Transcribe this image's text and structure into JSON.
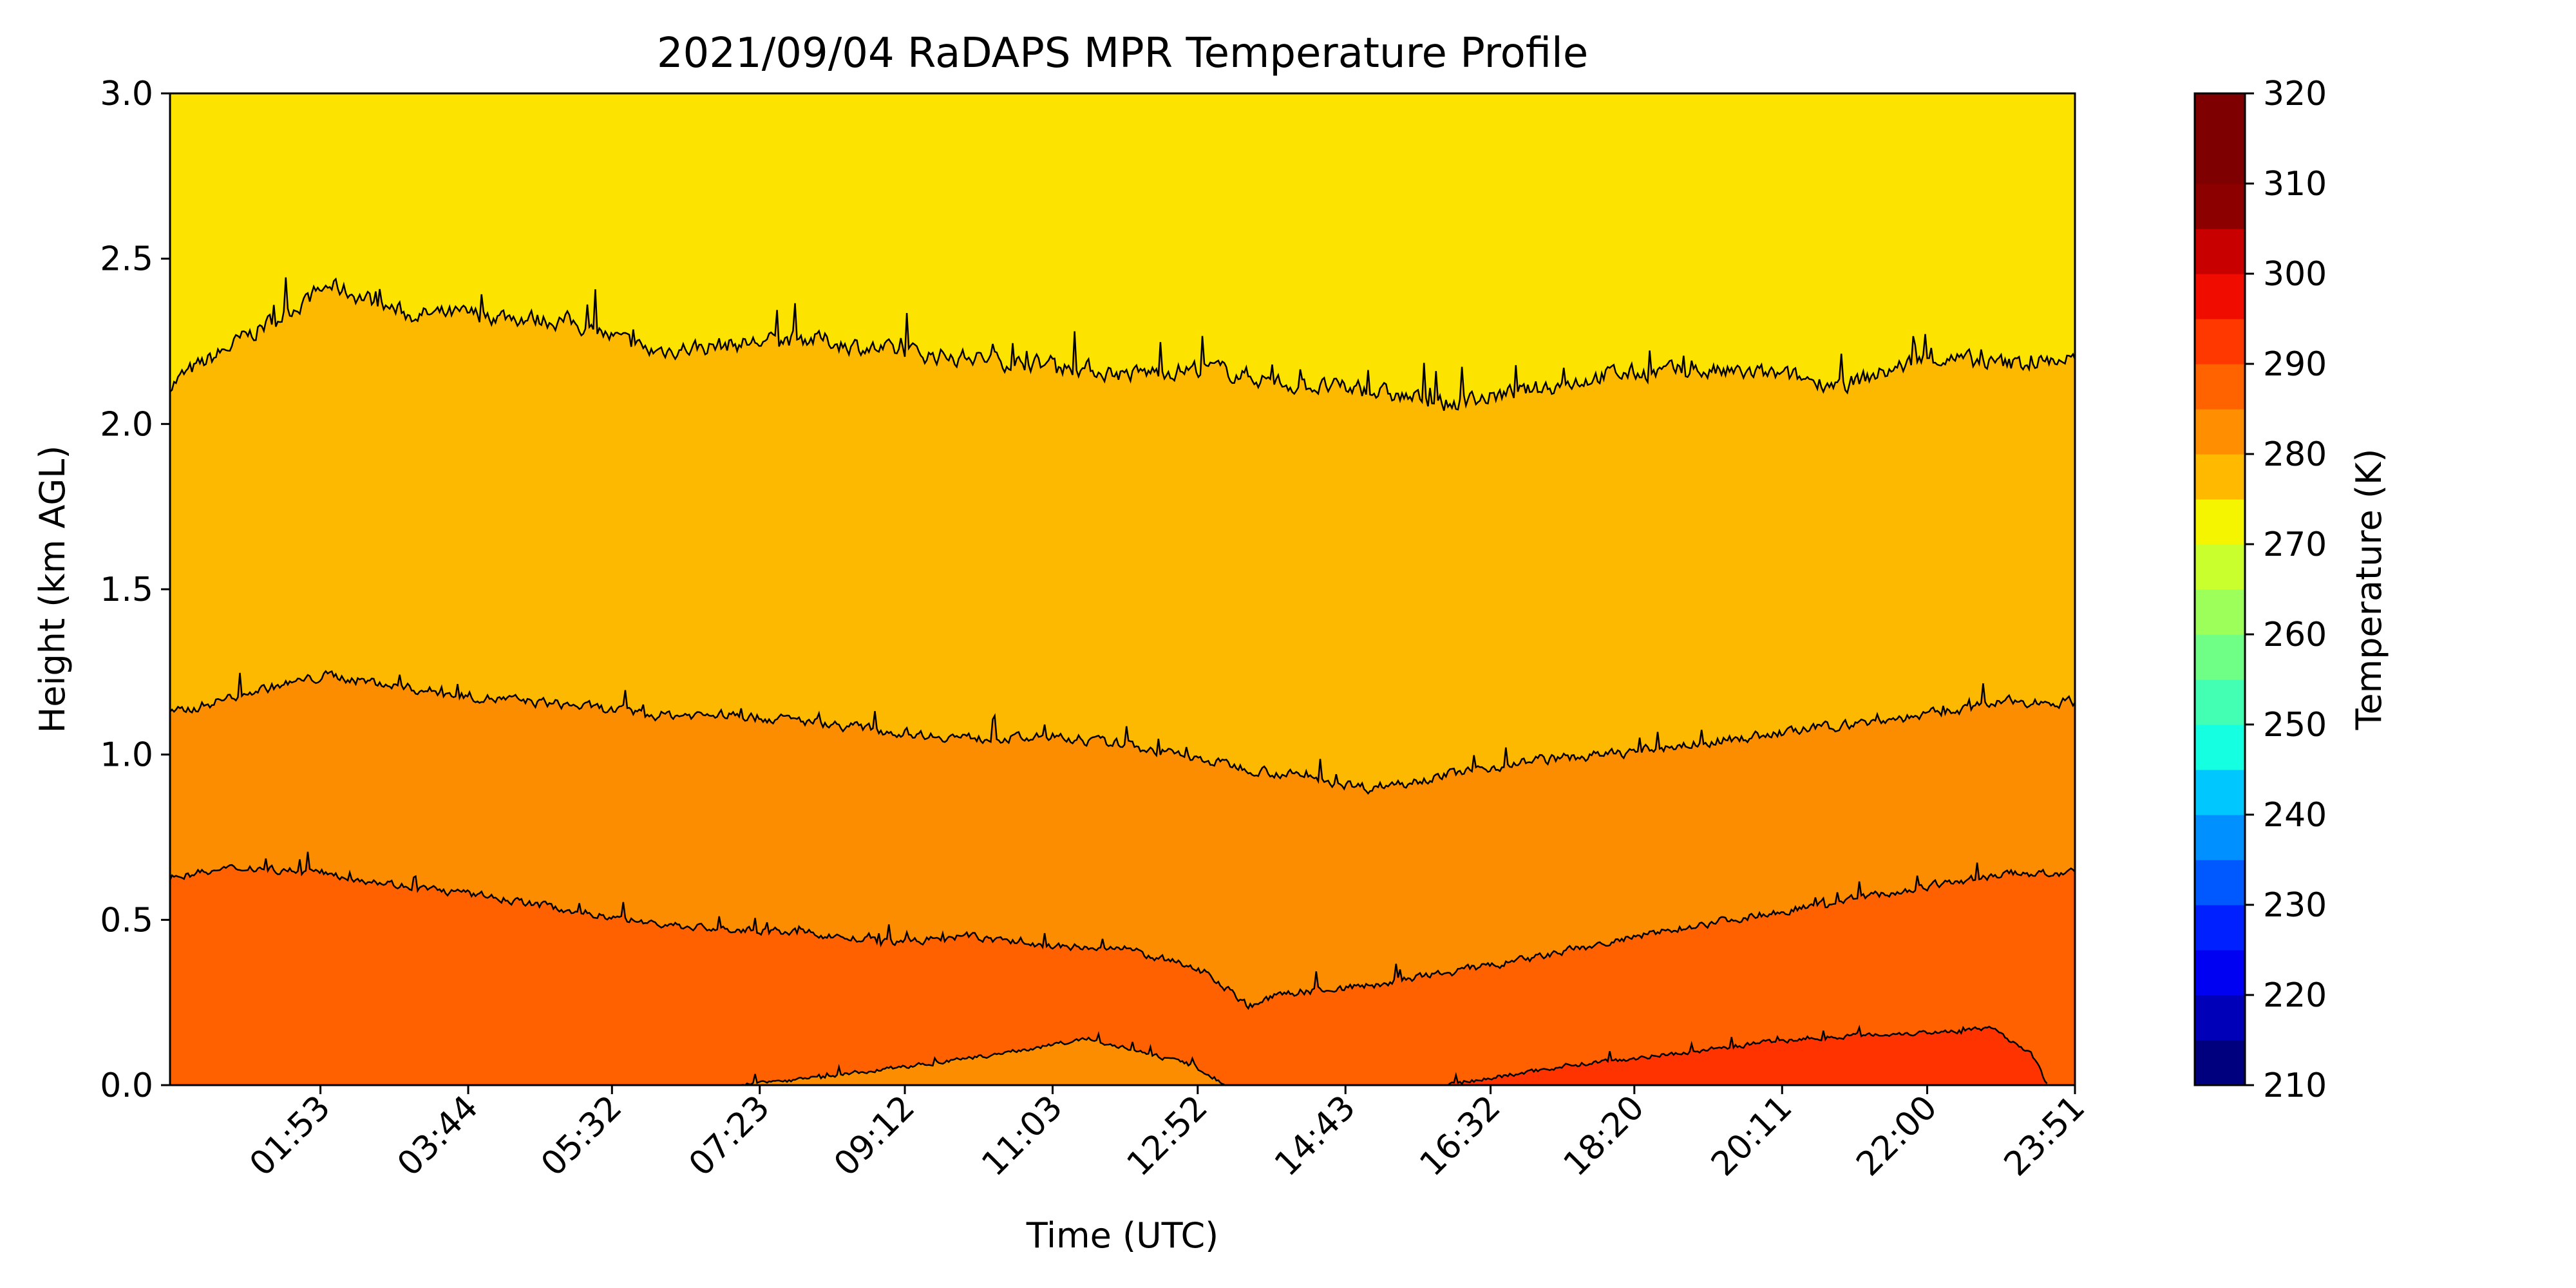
{
  "chart_data": {
    "type": "filled_contour",
    "title": "2021/09/04 RaDAPS MPR Temperature Profile",
    "xlabel": "Time (UTC)",
    "ylabel": "Height (km AGL)",
    "colorbar_label": "Temperature (K)",
    "x_ticks": [
      "01:53",
      "03:44",
      "05:32",
      "07:23",
      "09:12",
      "11:03",
      "12:52",
      "14:43",
      "16:32",
      "18:20",
      "20:11",
      "22:00",
      "23:51"
    ],
    "y_ticks": [
      "0.0",
      "0.5",
      "1.0",
      "1.5",
      "2.0",
      "2.5",
      "3.0"
    ],
    "ylim": [
      0,
      3.0
    ],
    "xlim_hours": [
      0.0,
      23.85
    ],
    "colorbar_ticks": [
      "210",
      "220",
      "230",
      "240",
      "250",
      "260",
      "270",
      "280",
      "290",
      "300",
      "310",
      "320"
    ],
    "colorbar_range": [
      210,
      320
    ],
    "colorbar_step": 5,
    "colorbar_colors": [
      "#00007f",
      "#0000b8",
      "#0000f2",
      "#0020ff",
      "#0058ff",
      "#0090ff",
      "#00c8ff",
      "#15ffe1",
      "#42ffb4",
      "#6fff87",
      "#9cff5a",
      "#c9ff2d",
      "#f6f500",
      "#ffba00",
      "#ff8f00",
      "#ff6300",
      "#ff3800",
      "#f10c00",
      "#c90000",
      "#8c0000",
      "#7f0000",
      "#7f0000"
    ],
    "contour_bands": [
      {
        "range_K": [
          280,
          285
        ],
        "color": "#fde400",
        "height_km": [
          2.15,
          3.0
        ]
      },
      {
        "range_K": [
          285,
          290
        ],
        "color": "#fdb800",
        "height_km": [
          1.05,
          2.15
        ]
      },
      {
        "range_K": [
          290,
          295
        ],
        "color": "#fd8d00",
        "height_km": [
          0.5,
          1.05
        ]
      },
      {
        "range_K": [
          295,
          300
        ],
        "color": "#ff6100",
        "height_km": [
          0.0,
          0.5
        ]
      },
      {
        "range_K": [
          300,
          305
        ],
        "color": "#ff3300",
        "height_km": [
          0.0,
          0.15
        ]
      }
    ],
    "isolines": [
      {
        "level_K": 285,
        "points": [
          [
            0.0,
            2.12
          ],
          [
            1.0,
            2.27
          ],
          [
            2.0,
            2.42
          ],
          [
            3.0,
            2.33
          ],
          [
            4.0,
            2.33
          ],
          [
            5.0,
            2.31
          ],
          [
            6.0,
            2.22
          ],
          [
            7.0,
            2.24
          ],
          [
            8.0,
            2.26
          ],
          [
            9.0,
            2.22
          ],
          [
            10.0,
            2.2
          ],
          [
            11.0,
            2.18
          ],
          [
            12.0,
            2.15
          ],
          [
            13.0,
            2.17
          ],
          [
            14.0,
            2.12
          ],
          [
            15.0,
            2.1
          ],
          [
            16.0,
            2.06
          ],
          [
            17.0,
            2.1
          ],
          [
            18.0,
            2.15
          ],
          [
            19.0,
            2.16
          ],
          [
            20.0,
            2.15
          ],
          [
            21.0,
            2.12
          ],
          [
            22.0,
            2.2
          ],
          [
            23.0,
            2.18
          ],
          [
            23.85,
            2.2
          ]
        ]
      },
      {
        "level_K": 290,
        "points": [
          [
            0.0,
            1.12
          ],
          [
            1.0,
            1.19
          ],
          [
            2.0,
            1.24
          ],
          [
            3.0,
            1.2
          ],
          [
            4.0,
            1.17
          ],
          [
            5.0,
            1.15
          ],
          [
            6.0,
            1.12
          ],
          [
            7.0,
            1.12
          ],
          [
            8.0,
            1.1
          ],
          [
            9.0,
            1.07
          ],
          [
            10.0,
            1.05
          ],
          [
            11.0,
            1.05
          ],
          [
            12.0,
            1.03
          ],
          [
            13.0,
            0.98
          ],
          [
            14.0,
            0.94
          ],
          [
            15.0,
            0.9
          ],
          [
            16.0,
            0.94
          ],
          [
            17.0,
            0.98
          ],
          [
            18.0,
            1.0
          ],
          [
            19.0,
            1.03
          ],
          [
            20.0,
            1.06
          ],
          [
            21.0,
            1.09
          ],
          [
            22.0,
            1.12
          ],
          [
            23.0,
            1.16
          ],
          [
            23.85,
            1.16
          ]
        ]
      },
      {
        "level_K": 295,
        "points": [
          [
            0.0,
            0.63
          ],
          [
            1.0,
            0.66
          ],
          [
            2.0,
            0.64
          ],
          [
            3.0,
            0.6
          ],
          [
            4.0,
            0.57
          ],
          [
            5.0,
            0.53
          ],
          [
            6.0,
            0.49
          ],
          [
            7.0,
            0.47
          ],
          [
            8.0,
            0.46
          ],
          [
            9.0,
            0.43
          ],
          [
            10.0,
            0.45
          ],
          [
            11.0,
            0.42
          ],
          [
            12.0,
            0.41
          ],
          [
            13.0,
            0.34
          ],
          [
            13.5,
            0.24
          ],
          [
            14.0,
            0.28
          ],
          [
            15.0,
            0.3
          ],
          [
            16.0,
            0.34
          ],
          [
            17.0,
            0.38
          ],
          [
            18.0,
            0.43
          ],
          [
            19.0,
            0.48
          ],
          [
            20.0,
            0.52
          ],
          [
            21.0,
            0.56
          ],
          [
            22.0,
            0.6
          ],
          [
            23.0,
            0.64
          ],
          [
            23.85,
            0.64
          ]
        ]
      },
      {
        "level_K": 300,
        "points": [
          [
            0.0,
            0.0
          ],
          [
            0.8,
            0.0
          ],
          [
            12.0,
            0.0
          ],
          [
            16.0,
            0.0
          ],
          [
            17.5,
            0.06
          ],
          [
            19.0,
            0.1
          ],
          [
            20.0,
            0.13
          ],
          [
            21.0,
            0.15
          ],
          [
            22.0,
            0.16
          ],
          [
            22.8,
            0.17
          ],
          [
            23.3,
            0.1
          ],
          [
            23.5,
            0.0
          ]
        ]
      },
      {
        "level_K": 290,
        "points": [
          [
            7.0,
            0.0
          ],
          [
            8.0,
            0.02
          ],
          [
            9.0,
            0.05
          ],
          [
            10.0,
            0.08
          ],
          [
            11.0,
            0.12
          ],
          [
            11.5,
            0.14
          ],
          [
            12.0,
            0.11
          ],
          [
            12.8,
            0.06
          ],
          [
            13.2,
            0.0
          ]
        ]
      }
    ]
  }
}
